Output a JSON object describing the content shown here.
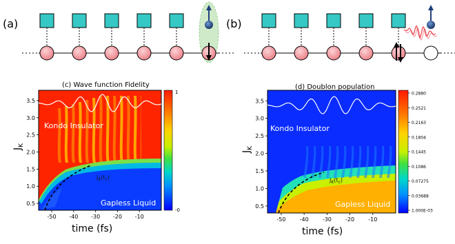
{
  "panel_a": {
    "label": "(a)",
    "sites": 6
  },
  "panel_b": {
    "label": "(b)",
    "sites": 6
  },
  "colors": {
    "square": "#36c8c4",
    "circle": "#f08a90",
    "spin": "#1f3f7a",
    "highlight": "#bfe3b8",
    "laser": "#e8404a"
  },
  "chart_data": [
    {
      "type": "heatmap",
      "title": "(c)    Wave function Fidelity",
      "xlabel": "time (fs)",
      "ylabel": "J",
      "ylabel_sub": "K",
      "xlim": [
        -56,
        0
      ],
      "ylim": [
        0.3,
        3.8
      ],
      "x_ticks": [
        "-50",
        "-40",
        "-30",
        "-20",
        "-10"
      ],
      "y_ticks": [
        "0.5",
        "1.0",
        "1.5",
        "2.0",
        "2.5",
        "3.0",
        "3.5"
      ],
      "colorbar_ticks": [
        "1",
        "-0"
      ],
      "region_labels": [
        "Kondo Insulator",
        "Gapless Liquid"
      ],
      "curve_label": "J",
      "curve_label_sub": "K",
      "curve_label_tail": "(t",
      "curve_label_tail_sub": "c",
      "curve_label_close": ")"
    },
    {
      "type": "heatmap",
      "title": "(d)    Doublon population",
      "xlabel": "time (fs)",
      "ylabel": "J",
      "ylabel_sub": "K",
      "xlim": [
        -56,
        0
      ],
      "ylim": [
        0.3,
        3.8
      ],
      "x_ticks": [
        "-50",
        "-40",
        "-30",
        "-20",
        "-10"
      ],
      "y_ticks": [
        "0.5",
        "1.0",
        "1.5",
        "2.0",
        "2.5",
        "3.0",
        "3.5"
      ],
      "colorbar_ticks": [
        "0.2880",
        "0.2521",
        "0.2163",
        "0.1804",
        "0.1445",
        "0.1086",
        "0.07275",
        "0.03688",
        "1.000E-03"
      ],
      "region_labels": [
        "Kondo Insulator",
        "Gapless Liquid"
      ],
      "curve_label": "J",
      "curve_label_sub": "K",
      "curve_label_tail": "(t",
      "curve_label_tail_sub": "c",
      "curve_label_close": ")"
    }
  ]
}
